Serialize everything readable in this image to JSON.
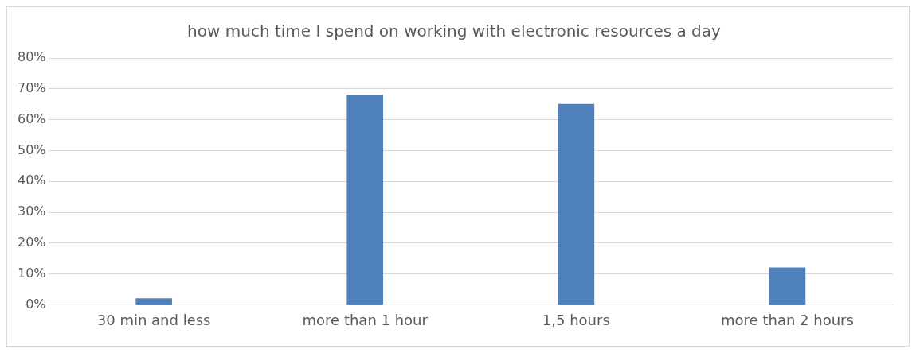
{
  "chart_data": {
    "type": "bar",
    "title": "how much time I spend on working with electronic resources a day",
    "categories": [
      "30 min and less",
      "more than 1 hour",
      "1,5 hours",
      "more than 2 hours"
    ],
    "values": [
      2,
      68,
      65,
      12
    ],
    "color": "#4f81bd",
    "ylim": [
      0,
      80
    ],
    "yticks": [
      {
        "value": 0,
        "label": "0%"
      },
      {
        "value": 10,
        "label": "10%"
      },
      {
        "value": 20,
        "label": "20%"
      },
      {
        "value": 30,
        "label": "30%"
      },
      {
        "value": 40,
        "label": "40%"
      },
      {
        "value": 50,
        "label": "50%"
      },
      {
        "value": 60,
        "label": "60%"
      },
      {
        "value": 70,
        "label": "70%"
      },
      {
        "value": 80,
        "label": "80%"
      }
    ],
    "grid": "y",
    "legend": false
  }
}
